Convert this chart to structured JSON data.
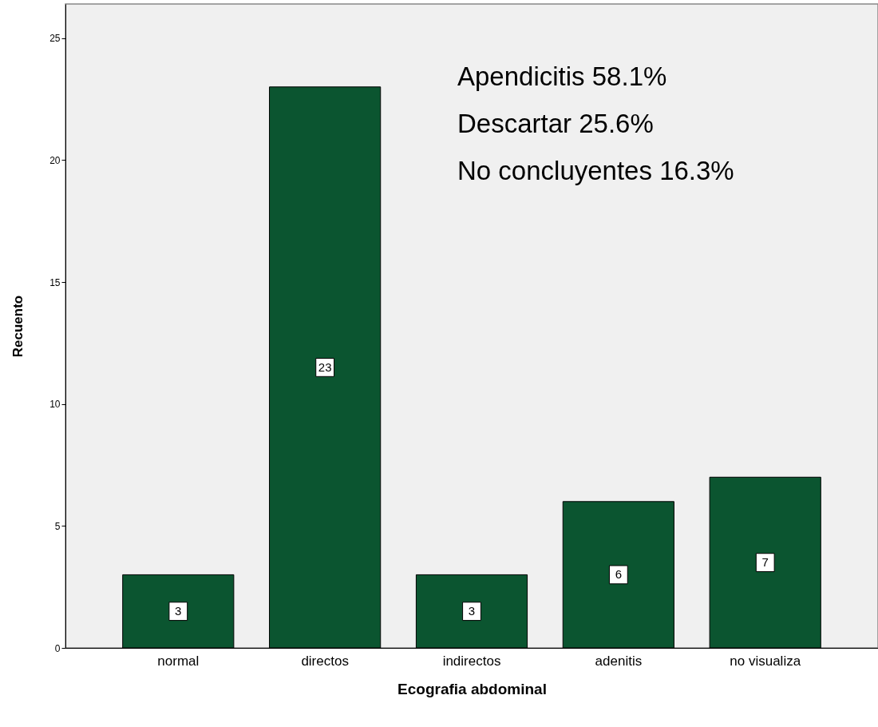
{
  "chart_data": {
    "type": "bar",
    "xlabel": "Ecografia abdominal",
    "ylabel": "Recuento",
    "categories": [
      "normal",
      "directos",
      "indirectos",
      "adenitis",
      "no visualiza"
    ],
    "values": [
      3,
      23,
      3,
      6,
      7
    ],
    "color": "#0b5530",
    "ylim": [
      0,
      26.4
    ],
    "yticks": [
      0,
      5,
      10,
      15,
      20,
      25
    ],
    "grid": false,
    "data_labels": true,
    "annotations": [
      "Apendicitis 58.1%",
      "Descartar 25.6%",
      "No concluyentes 16.3%"
    ]
  }
}
